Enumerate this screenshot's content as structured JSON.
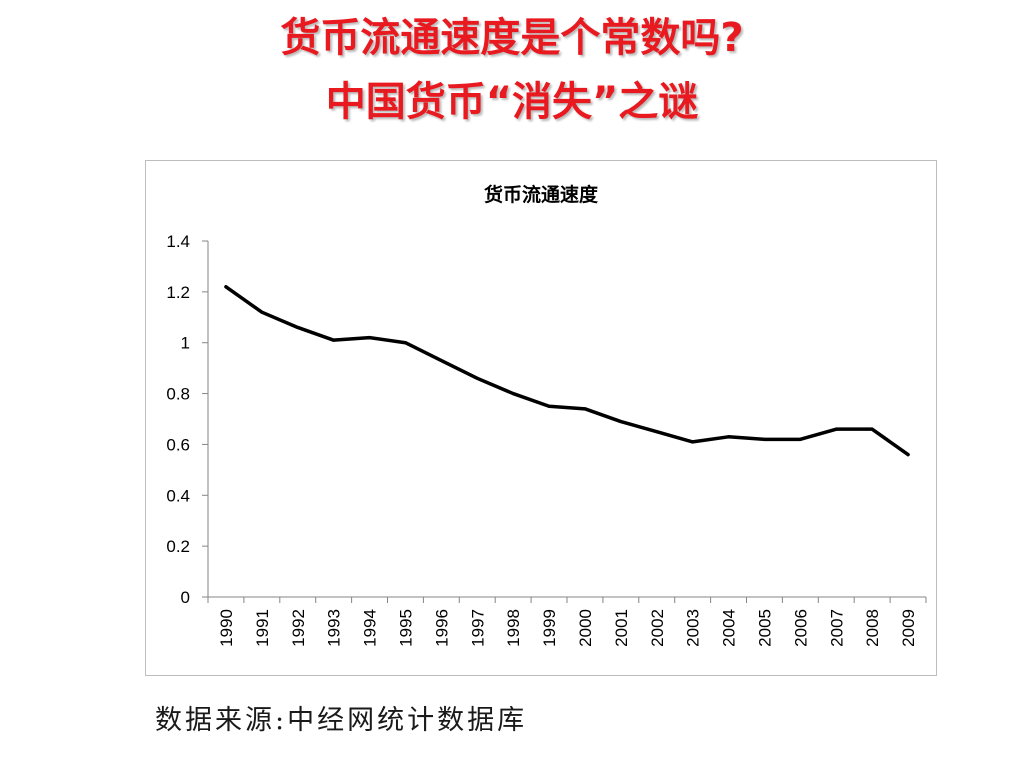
{
  "slide": {
    "title_line1": "货币流通速度是个常数吗?",
    "title_line2": "中国货币“消失”之谜",
    "source": "数据来源:中经网统计数据库"
  },
  "colors": {
    "title": "#e8191f",
    "line": "#000000",
    "axis": "#868686"
  },
  "chart_data": {
    "type": "line",
    "title": "货币流通速度",
    "xlabel": "",
    "ylabel": "",
    "ylim": [
      0,
      1.4
    ],
    "yticks": [
      "0",
      "0.2",
      "0.4",
      "0.6",
      "0.8",
      "1",
      "1.2",
      "1.4"
    ],
    "yticks_values": [
      0,
      0.2,
      0.4,
      0.6,
      0.8,
      1.0,
      1.2,
      1.4
    ],
    "categories": [
      "1990",
      "1991",
      "1992",
      "1993",
      "1994",
      "1995",
      "1996",
      "1997",
      "1998",
      "1999",
      "2000",
      "2001",
      "2002",
      "2003",
      "2004",
      "2005",
      "2006",
      "2007",
      "2008",
      "2009"
    ],
    "series": [
      {
        "values": [
          1.22,
          1.12,
          1.06,
          1.01,
          1.02,
          1.0,
          0.93,
          0.86,
          0.8,
          0.75,
          0.74,
          0.69,
          0.65,
          0.61,
          0.63,
          0.62,
          0.62,
          0.66,
          0.66,
          0.56
        ]
      }
    ],
    "grid": false,
    "legend": "none"
  }
}
